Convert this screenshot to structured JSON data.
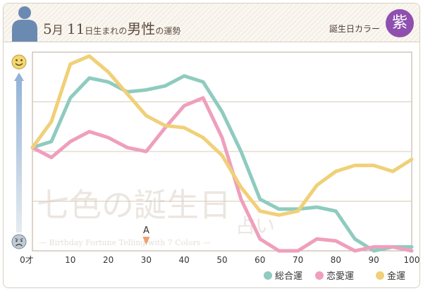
{
  "header": {
    "month": "5",
    "month_unit": "月",
    "day": "11",
    "suffix": "日生まれの",
    "subject": "男性",
    "suffix2": "の運勢",
    "color_label": "誕生日カラー",
    "color_char": "紫"
  },
  "watermark": {
    "line1": "七色の誕生日",
    "line1_tail": "占い",
    "line2": "— Birthday Fortune Telling with 7 Colors —"
  },
  "marker": {
    "label": "A",
    "age": 30
  },
  "colors": {
    "general": "#8fcbbf",
    "love": "#ef9fbc",
    "money": "#f0d078",
    "accent": "#8e4fae"
  },
  "chart_data": {
    "type": "line",
    "title": "5月11日生まれの男性の運勢",
    "xlabel": "",
    "ylabel": "",
    "x": [
      0,
      5,
      10,
      15,
      20,
      25,
      30,
      35,
      40,
      45,
      50,
      55,
      60,
      65,
      70,
      75,
      80,
      85,
      90,
      95,
      100
    ],
    "xticks": [
      0,
      10,
      20,
      30,
      40,
      50,
      60,
      70,
      80,
      90,
      100
    ],
    "xtick_labels": [
      "0才",
      "10",
      "20",
      "30",
      "40",
      "50",
      "60",
      "70",
      "80",
      "90",
      "100"
    ],
    "xlim": [
      0,
      100
    ],
    "ylim": [
      0,
      100
    ],
    "y_top_icon": "happy-face",
    "y_bottom_icon": "sad-face",
    "series": [
      {
        "name": "総合運",
        "key": "general",
        "values": [
          52,
          55,
          77,
          87,
          85,
          80,
          81,
          83,
          88,
          85,
          70,
          50,
          26,
          21,
          21,
          22,
          20,
          6,
          0,
          2,
          2
        ]
      },
      {
        "name": "恋愛運",
        "key": "love",
        "values": [
          52,
          47,
          55,
          60,
          57,
          52,
          50,
          62,
          73,
          77,
          57,
          26,
          6,
          0,
          0,
          6,
          5,
          0,
          2,
          2,
          0
        ]
      },
      {
        "name": "金運",
        "key": "money",
        "values": [
          52,
          65,
          94,
          98,
          90,
          79,
          68,
          63,
          62,
          57,
          48,
          32,
          20,
          18,
          20,
          33,
          40,
          43,
          43,
          40,
          46
        ]
      }
    ],
    "legend_position": "bottom-right"
  }
}
